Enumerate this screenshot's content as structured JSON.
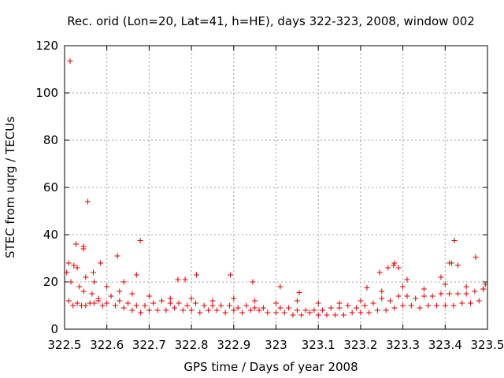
{
  "chart_data": {
    "type": "scatter",
    "title": "Rec. orid (Lon=20, Lat=41, h=HE), days 322-323, 2008, window 002",
    "xlabel": "GPS time / Days of year 2008",
    "ylabel": "STEC from uqrg / TECUs",
    "xlim": [
      322.5,
      323.5
    ],
    "ylim": [
      0,
      120
    ],
    "xticks": [
      322.5,
      322.6,
      322.7,
      322.8,
      322.9,
      323.0,
      323.1,
      323.2,
      323.3,
      323.4,
      323.5
    ],
    "xtick_labels": [
      "322.5",
      "322.6",
      "322.7",
      "322.8",
      "322.9",
      "323",
      "323.1",
      "323.2",
      "323.3",
      "323.4",
      "323.5"
    ],
    "yticks": [
      0,
      20,
      40,
      60,
      80,
      100,
      120
    ],
    "ytick_labels": [
      "0",
      "20",
      "40",
      "60",
      "80",
      "100",
      "120"
    ],
    "grid": true,
    "marker": "+",
    "color": "#e00000",
    "series": [
      {
        "name": "STEC",
        "x": [
          322.51,
          322.52,
          322.53,
          322.54,
          322.55,
          322.56,
          322.57,
          322.58,
          322.59,
          322.6,
          322.62,
          322.64,
          322.66,
          322.68,
          322.7,
          322.72,
          322.74,
          322.76,
          322.78,
          322.8,
          322.82,
          322.84,
          322.86,
          322.88,
          322.9,
          322.92,
          322.94,
          322.96,
          322.98,
          323.0,
          323.02,
          323.04,
          323.06,
          323.08,
          323.1,
          323.12,
          323.14,
          323.16,
          323.18,
          323.2,
          323.22,
          323.24,
          323.26,
          323.28,
          323.3,
          323.32,
          323.34,
          323.36,
          323.38,
          323.4,
          323.42,
          323.44,
          323.46,
          323.48,
          322.505,
          322.515,
          322.535,
          322.545,
          322.565,
          322.58,
          322.61,
          322.63,
          322.65,
          322.67,
          322.69,
          322.71,
          322.73,
          322.75,
          322.77,
          322.79,
          322.81,
          322.83,
          322.85,
          322.87,
          322.89,
          322.91,
          322.93,
          322.95,
          322.97,
          323.01,
          323.03,
          323.05,
          323.07,
          323.09,
          323.11,
          323.13,
          323.15,
          323.17,
          323.19,
          323.21,
          323.23,
          323.25,
          323.27,
          323.29,
          323.31,
          323.33,
          323.35,
          323.37,
          323.39,
          323.41,
          323.43,
          323.45,
          323.47,
          323.49,
          322.51,
          322.53,
          322.55,
          322.57,
          322.6,
          322.63,
          322.66,
          322.7,
          322.75,
          322.8,
          322.85,
          322.9,
          322.95,
          323.0,
          323.05,
          323.1,
          323.15,
          323.2,
          323.25,
          323.3,
          323.35,
          323.4,
          323.45,
          323.49,
          322.513,
          322.522,
          322.527,
          322.545,
          322.545,
          322.555,
          322.568,
          322.585,
          322.625,
          322.679,
          322.64,
          322.67,
          322.768,
          322.785,
          322.812,
          322.892,
          322.945,
          323.01,
          323.055,
          323.215,
          323.245,
          323.265,
          323.278,
          323.28,
          323.29,
          323.31,
          323.39,
          323.41,
          323.422,
          323.415,
          323.43,
          323.472,
          323.495
        ],
        "y": [
          12,
          10,
          11,
          10,
          10,
          11,
          11,
          12,
          10,
          11,
          10,
          9,
          8,
          7,
          8,
          8,
          8,
          9,
          8,
          8,
          7,
          8,
          8,
          7,
          8,
          7,
          8,
          8,
          7,
          7,
          7,
          6,
          6,
          7,
          6,
          6,
          6,
          6,
          7,
          7,
          7,
          8,
          8,
          9,
          10,
          10,
          9,
          10,
          10,
          10,
          10,
          11,
          11,
          12,
          24,
          20,
          18,
          16,
          15,
          13,
          14,
          12,
          11,
          10,
          10,
          11,
          12,
          11,
          11,
          10,
          11,
          10,
          10,
          10,
          10,
          9,
          10,
          9,
          9,
          9,
          9,
          8,
          8,
          8,
          8,
          9,
          9,
          10,
          9,
          10,
          11,
          13,
          12,
          14,
          14,
          13,
          14,
          14,
          15,
          15,
          15,
          15,
          16,
          17,
          28,
          26,
          22,
          20,
          18,
          16,
          15,
          14,
          13,
          13,
          12,
          13,
          12,
          11,
          12,
          11,
          11,
          12,
          16,
          18,
          17,
          19,
          18,
          17,
          113.5,
          27,
          36,
          35,
          34,
          54,
          24,
          28,
          31,
          37.5,
          20,
          23,
          21,
          21,
          23,
          23,
          20,
          18,
          15.5,
          17.5,
          24,
          26,
          27,
          28,
          26,
          21,
          22,
          28,
          37.5,
          28,
          27,
          30.5,
          19
        ]
      }
    ]
  }
}
